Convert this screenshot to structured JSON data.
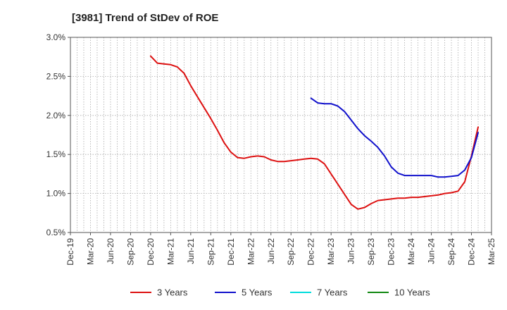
{
  "chart_data": {
    "type": "line",
    "title": "[3981]  Trend of StDev of ROE",
    "xlabel": "",
    "ylabel": "",
    "ylim": [
      0.5,
      3.0
    ],
    "yticks": [
      "0.5%",
      "1.0%",
      "1.5%",
      "2.0%",
      "2.5%",
      "3.0%"
    ],
    "xticks": [
      "Dec-19",
      "Mar-20",
      "Jun-20",
      "Sep-20",
      "Dec-20",
      "Mar-21",
      "Jun-21",
      "Sep-21",
      "Dec-21",
      "Mar-22",
      "Jun-22",
      "Sep-22",
      "Dec-22",
      "Mar-23",
      "Jun-23",
      "Sep-23",
      "Dec-23",
      "Mar-24",
      "Jun-24",
      "Sep-24",
      "Dec-24",
      "Mar-25"
    ],
    "grid": true,
    "legend_position": "bottom",
    "series": [
      {
        "name": "3 Years",
        "color": "#dd1111",
        "points": [
          [
            "Dec-20",
            2.76
          ],
          [
            "Jan-21",
            2.67
          ],
          [
            "Feb-21",
            2.66
          ],
          [
            "Mar-21",
            2.65
          ],
          [
            "Apr-21",
            2.62
          ],
          [
            "May-21",
            2.54
          ],
          [
            "Jun-21",
            2.38
          ],
          [
            "Jul-21",
            2.24
          ],
          [
            "Aug-21",
            2.1
          ],
          [
            "Sep-21",
            1.96
          ],
          [
            "Oct-21",
            1.81
          ],
          [
            "Nov-21",
            1.65
          ],
          [
            "Dec-21",
            1.53
          ],
          [
            "Jan-22",
            1.46
          ],
          [
            "Feb-22",
            1.45
          ],
          [
            "Mar-22",
            1.47
          ],
          [
            "Apr-22",
            1.48
          ],
          [
            "May-22",
            1.47
          ],
          [
            "Jun-22",
            1.43
          ],
          [
            "Jul-22",
            1.41
          ],
          [
            "Aug-22",
            1.41
          ],
          [
            "Sep-22",
            1.42
          ],
          [
            "Oct-22",
            1.43
          ],
          [
            "Nov-22",
            1.44
          ],
          [
            "Dec-22",
            1.45
          ],
          [
            "Jan-23",
            1.44
          ],
          [
            "Feb-23",
            1.38
          ],
          [
            "Mar-23",
            1.25
          ],
          [
            "Apr-23",
            1.12
          ],
          [
            "May-23",
            0.99
          ],
          [
            "Jun-23",
            0.86
          ],
          [
            "Jul-23",
            0.8
          ],
          [
            "Aug-23",
            0.82
          ],
          [
            "Sep-23",
            0.87
          ],
          [
            "Oct-23",
            0.91
          ],
          [
            "Nov-23",
            0.92
          ],
          [
            "Dec-23",
            0.93
          ],
          [
            "Jan-24",
            0.94
          ],
          [
            "Feb-24",
            0.94
          ],
          [
            "Mar-24",
            0.95
          ],
          [
            "Apr-24",
            0.95
          ],
          [
            "May-24",
            0.96
          ],
          [
            "Jun-24",
            0.97
          ],
          [
            "Jul-24",
            0.98
          ],
          [
            "Aug-24",
            1.0
          ],
          [
            "Sep-24",
            1.01
          ],
          [
            "Oct-24",
            1.03
          ],
          [
            "Nov-24",
            1.15
          ],
          [
            "Dec-24",
            1.48
          ],
          [
            "Jan-25",
            1.85
          ]
        ]
      },
      {
        "name": "5 Years",
        "color": "#1111cc",
        "points": [
          [
            "Dec-22",
            2.22
          ],
          [
            "Jan-23",
            2.16
          ],
          [
            "Feb-23",
            2.15
          ],
          [
            "Mar-23",
            2.15
          ],
          [
            "Apr-23",
            2.12
          ],
          [
            "May-23",
            2.05
          ],
          [
            "Jun-23",
            1.94
          ],
          [
            "Jul-23",
            1.83
          ],
          [
            "Aug-23",
            1.74
          ],
          [
            "Sep-23",
            1.67
          ],
          [
            "Oct-23",
            1.59
          ],
          [
            "Nov-23",
            1.48
          ],
          [
            "Dec-23",
            1.34
          ],
          [
            "Jan-24",
            1.26
          ],
          [
            "Feb-24",
            1.23
          ],
          [
            "Mar-24",
            1.23
          ],
          [
            "Apr-24",
            1.23
          ],
          [
            "May-24",
            1.23
          ],
          [
            "Jun-24",
            1.23
          ],
          [
            "Jul-24",
            1.21
          ],
          [
            "Aug-24",
            1.21
          ],
          [
            "Sep-24",
            1.22
          ],
          [
            "Oct-24",
            1.23
          ],
          [
            "Nov-24",
            1.3
          ],
          [
            "Dec-24",
            1.46
          ],
          [
            "Jan-25",
            1.78
          ]
        ]
      },
      {
        "name": "7 Years",
        "color": "#00dddd",
        "points": []
      },
      {
        "name": "10 Years",
        "color": "#118811",
        "points": []
      }
    ]
  }
}
